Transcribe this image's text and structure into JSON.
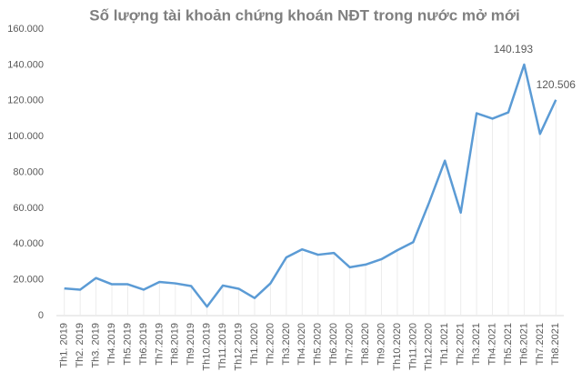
{
  "chart_data": {
    "type": "line",
    "title": "Số lượng tài khoản chứng khoán NĐT trong nước mở mới",
    "categories": [
      "Th1. 2019",
      "Th2. 2019",
      "Th3. 2019",
      "Th4.2019",
      "Th5.2019",
      "Th6.2019",
      "Th7.2019",
      "Th8.2019",
      "Th9.2019",
      "Th10.2019",
      "Th11.2019",
      "Th12.2019",
      "Th1.2020",
      "Th2.2020",
      "Th3.2020",
      "Th4.2020",
      "Th5.2020",
      "Th6.2020",
      "Th7.2020",
      "Th8.2020",
      "Th9.2020",
      "Th10.2020",
      "Th11.2020",
      "Th12.2020",
      "Th1.2021",
      "Th2.2021",
      "Th3.2021",
      "Th4.2021",
      "Th5.2021",
      "Th6.2021",
      "Th7.2021",
      "Th8.2021"
    ],
    "values": [
      15200,
      14500,
      21000,
      17500,
      17500,
      14500,
      18800,
      18000,
      16500,
      5000,
      16800,
      15000,
      9800,
      18000,
      32500,
      37000,
      34000,
      35000,
      27000,
      28500,
      31500,
      36500,
      41000,
      63000,
      86500,
      57500,
      113000,
      110000,
      113500,
      140193,
      101500,
      120506
    ],
    "value_labels": [
      null,
      null,
      null,
      null,
      null,
      null,
      null,
      null,
      null,
      null,
      null,
      null,
      null,
      null,
      null,
      null,
      null,
      null,
      null,
      null,
      null,
      null,
      null,
      null,
      null,
      null,
      null,
      null,
      null,
      "140.193",
      null,
      "120.506"
    ],
    "color": "#5b9bd5",
    "ylim": [
      0,
      160000
    ],
    "yticks": [
      0,
      {
        "value": 20000,
        "label": "20.000"
      },
      {
        "value": 40000,
        "label": "40.000"
      },
      {
        "value": 60000,
        "label": "60.000"
      },
      {
        "value": 80000,
        "label": "80.000"
      },
      {
        "value": 100000,
        "label": "100.000"
      },
      {
        "value": 120000,
        "label": "120.000"
      },
      {
        "value": 140000,
        "label": "140.000"
      },
      {
        "value": 160000,
        "label": "160.000"
      }
    ],
    "grid": false
  }
}
